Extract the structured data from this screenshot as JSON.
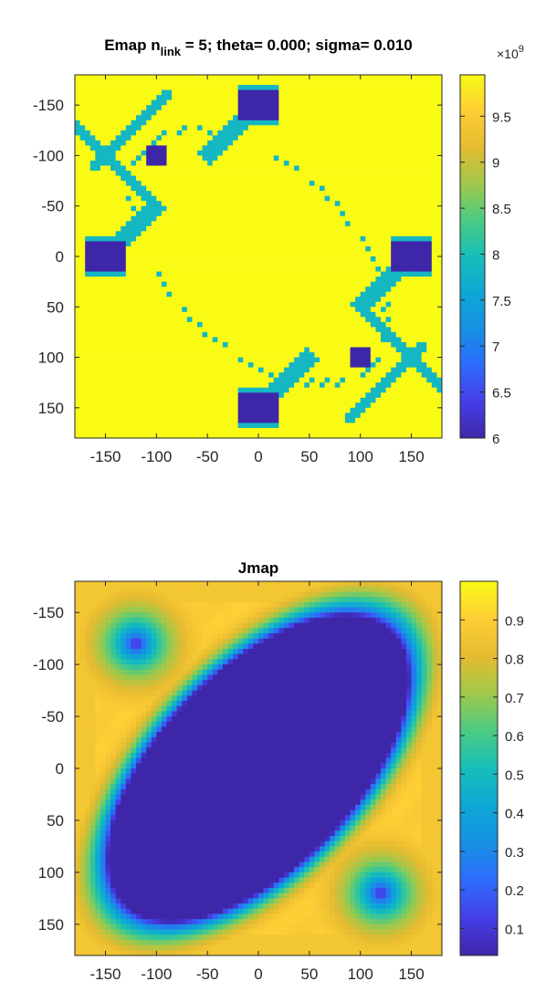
{
  "chart_data": [
    {
      "type": "heatmap",
      "title_parts": [
        "Emap n",
        "link",
        " = 5; theta=   0.000; sigma=   0.010"
      ],
      "xlim": [
        -180,
        180
      ],
      "ylim": [
        -180,
        180
      ],
      "y_direction": "reversed",
      "x_ticks": [
        -150,
        -100,
        -50,
        0,
        50,
        100,
        150
      ],
      "y_ticks": [
        -150,
        -100,
        -50,
        0,
        50,
        100,
        150
      ],
      "colormap": "parula",
      "colors": {
        "low": "#3e26a8",
        "mid": "#17beb9",
        "high": "#f9fb15"
      },
      "value_levels": {
        "high": 9.95,
        "mid": 7.85,
        "low": 6.0
      },
      "colorbar": {
        "min": 6.0,
        "max": 9.95,
        "ticks": [
          6,
          6.5,
          7,
          7.5,
          8,
          8.5,
          9,
          9.5
        ],
        "tick_labels": [
          "6",
          "6.5",
          "7",
          "7.5",
          "8",
          "8.5",
          "9",
          "9.5"
        ],
        "exponent_label": "×10",
        "exponent_value": "9"
      },
      "low_wells": [
        {
          "x": 0,
          "y": -150
        },
        {
          "x": -150,
          "y": 0
        },
        {
          "x": 150,
          "y": 0
        },
        {
          "x": 0,
          "y": 150
        },
        {
          "x": -100,
          "y": -100
        },
        {
          "x": 100,
          "y": 100
        }
      ]
    },
    {
      "type": "heatmap",
      "title": "Jmap",
      "xlim": [
        -180,
        180
      ],
      "ylim": [
        -180,
        180
      ],
      "y_direction": "reversed",
      "x_ticks": [
        -150,
        -100,
        -50,
        0,
        50,
        100,
        150
      ],
      "y_ticks": [
        -150,
        -100,
        -50,
        0,
        50,
        100,
        150
      ],
      "colormap": "parula",
      "colorbar": {
        "min": 0.03,
        "max": 1.0,
        "ticks": [
          0.1,
          0.2,
          0.3,
          0.4,
          0.5,
          0.6,
          0.7,
          0.8,
          0.9
        ],
        "tick_labels": [
          "0.1",
          "0.2",
          "0.3",
          "0.4",
          "0.5",
          "0.6",
          "0.7",
          "0.8",
          "0.9"
        ]
      },
      "features": {
        "central_ellipse": {
          "center_x": 0,
          "center_y": 0,
          "orientation": "tilted from upper-right to lower-left",
          "value": 0.03
        },
        "minima": [
          {
            "x": -120,
            "y": -120,
            "value": 0.03
          },
          {
            "x": 120,
            "y": 120,
            "value": 0.03
          }
        ],
        "ridge_value": 1.0
      }
    }
  ]
}
